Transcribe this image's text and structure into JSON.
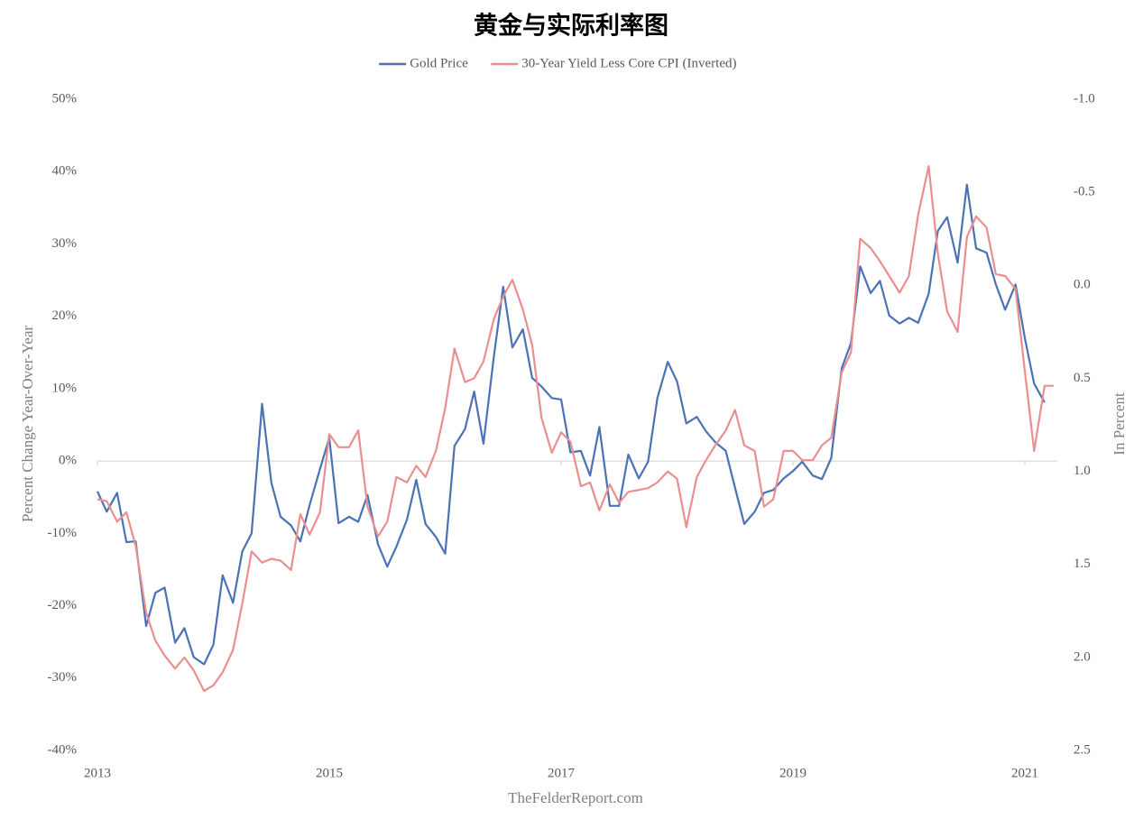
{
  "chart_data": {
    "type": "line",
    "title": "黄金与实际利率图",
    "source": "TheFelderReport.com",
    "y_label": "Percent Change Year-Over-Year",
    "y2_label": "In Percent",
    "legend": "top",
    "xlim": [
      2013,
      2021.28
    ],
    "xticks": [
      2013,
      2015,
      2017,
      2019,
      2021
    ],
    "ylim": [
      -40,
      50
    ],
    "yticks": [
      {
        "value": -40,
        "label": "-40%"
      },
      {
        "value": -30,
        "label": "-30%"
      },
      {
        "value": -20,
        "label": "-20%"
      },
      {
        "value": -10,
        "label": "-10%"
      },
      {
        "value": 0,
        "label": "0%"
      },
      {
        "value": 10,
        "label": "10%"
      },
      {
        "value": 20,
        "label": "20%"
      },
      {
        "value": 30,
        "label": "30%"
      },
      {
        "value": 40,
        "label": "40%"
      },
      {
        "value": 50,
        "label": "50%"
      }
    ],
    "y2lim": [
      2.5,
      -1.0
    ],
    "y2_inverted": true,
    "y2ticks": [
      {
        "value": -1.0,
        "label": "-1.0"
      },
      -0.5,
      {
        "value": 0.0,
        "label": "0.0"
      },
      0.5,
      {
        "value": 1.0,
        "label": "1.0"
      },
      1.5,
      {
        "value": 2.0,
        "label": "2.0"
      },
      2.5
    ],
    "x": [
      2013,
      2013.08,
      2013.17,
      2013.25,
      2013.33,
      2013.42,
      2013.5,
      2013.58,
      2013.67,
      2013.75,
      2013.83,
      2013.92,
      2014,
      2014.08,
      2014.17,
      2014.25,
      2014.33,
      2014.42,
      2014.5,
      2014.58,
      2014.67,
      2014.75,
      2014.83,
      2014.92,
      2015,
      2015.08,
      2015.17,
      2015.25,
      2015.33,
      2015.42,
      2015.5,
      2015.58,
      2015.67,
      2015.75,
      2015.83,
      2015.92,
      2016,
      2016.08,
      2016.17,
      2016.25,
      2016.33,
      2016.42,
      2016.5,
      2016.58,
      2016.67,
      2016.75,
      2016.83,
      2016.92,
      2017,
      2017.08,
      2017.17,
      2017.25,
      2017.33,
      2017.42,
      2017.5,
      2017.58,
      2017.67,
      2017.75,
      2017.83,
      2017.92,
      2018,
      2018.08,
      2018.17,
      2018.25,
      2018.33,
      2018.42,
      2018.5,
      2018.58,
      2018.67,
      2018.75,
      2018.83,
      2018.92,
      2019,
      2019.08,
      2019.17,
      2019.25,
      2019.33,
      2019.42,
      2019.5,
      2019.58,
      2019.67,
      2019.75,
      2019.83,
      2019.92,
      2020,
      2020.08,
      2020.17,
      2020.25,
      2020.33,
      2020.42,
      2020.5,
      2020.58,
      2020.67,
      2020.75,
      2020.83,
      2020.92,
      2021,
      2021.08,
      2021.17,
      2021.25
    ],
    "series": [
      {
        "name": "Gold Price",
        "color": "#4a72b5",
        "values": [
          -4.2,
          -7.0,
          -4.4,
          -11.2,
          -11.1,
          -22.8,
          -18.2,
          -17.5,
          -25.1,
          -23.1,
          -27.1,
          -28.1,
          -25.4,
          -15.8,
          -19.6,
          -12.5,
          -10.0,
          7.9,
          -3.0,
          -7.7,
          -8.9,
          -11.1,
          -6.1,
          -1.1,
          3.2,
          -8.6,
          -7.7,
          -8.4,
          -4.7,
          -11.5,
          -14.6,
          -11.8,
          -8.1,
          -2.6,
          -8.7,
          -10.5,
          -12.8,
          2.1,
          4.4,
          9.6,
          2.4,
          14.5,
          24.1,
          15.7,
          18.2,
          11.5,
          10.3,
          8.7,
          8.5,
          1.2,
          1.4,
          -2.0,
          4.7,
          -6.2,
          -6.2,
          0.9,
          -2.4,
          -0.1,
          8.7,
          13.7,
          11.0,
          5.2,
          6.1,
          4.1,
          2.6,
          1.4,
          -3.7,
          -8.7,
          -7.0,
          -4.4,
          -4.0,
          -2.4,
          -1.4,
          -0.1,
          -2.0,
          -2.5,
          0.4,
          12.8,
          16.3,
          26.9,
          23.2,
          24.9,
          20.1,
          19.0,
          19.8,
          19.1,
          23.1,
          31.8,
          33.7,
          27.4,
          38.2,
          29.4,
          28.8,
          24.4,
          20.9,
          24.4,
          17.0,
          10.7,
          8.1,
          null
        ]
      },
      {
        "name": "30-Year Yield Less Core CPI (Inverted)",
        "color": "#ea8f8f",
        "axis": "y2",
        "values": [
          1.15,
          1.16,
          1.27,
          1.22,
          1.4,
          1.76,
          1.91,
          1.99,
          2.06,
          2.0,
          2.07,
          2.18,
          2.15,
          2.08,
          1.96,
          1.71,
          1.43,
          1.49,
          1.47,
          1.48,
          1.53,
          1.23,
          1.34,
          1.22,
          0.8,
          0.87,
          0.87,
          0.78,
          1.19,
          1.35,
          1.27,
          1.03,
          1.06,
          0.97,
          1.03,
          0.89,
          0.66,
          0.34,
          0.52,
          0.5,
          0.41,
          0.18,
          0.06,
          -0.03,
          0.13,
          0.32,
          0.71,
          0.9,
          0.79,
          0.84,
          1.08,
          1.06,
          1.21,
          1.07,
          1.17,
          1.11,
          1.1,
          1.09,
          1.06,
          1.0,
          1.04,
          1.3,
          1.03,
          0.94,
          0.86,
          0.78,
          0.67,
          0.86,
          0.89,
          1.19,
          1.15,
          0.89,
          0.89,
          0.94,
          0.94,
          0.86,
          0.82,
          0.47,
          0.36,
          -0.25,
          -0.2,
          -0.13,
          -0.05,
          0.04,
          -0.05,
          -0.38,
          -0.64,
          -0.17,
          0.14,
          0.25,
          -0.26,
          -0.37,
          -0.31,
          -0.06,
          -0.05,
          0.02,
          0.46,
          0.89,
          0.54,
          0.54
        ]
      }
    ]
  }
}
